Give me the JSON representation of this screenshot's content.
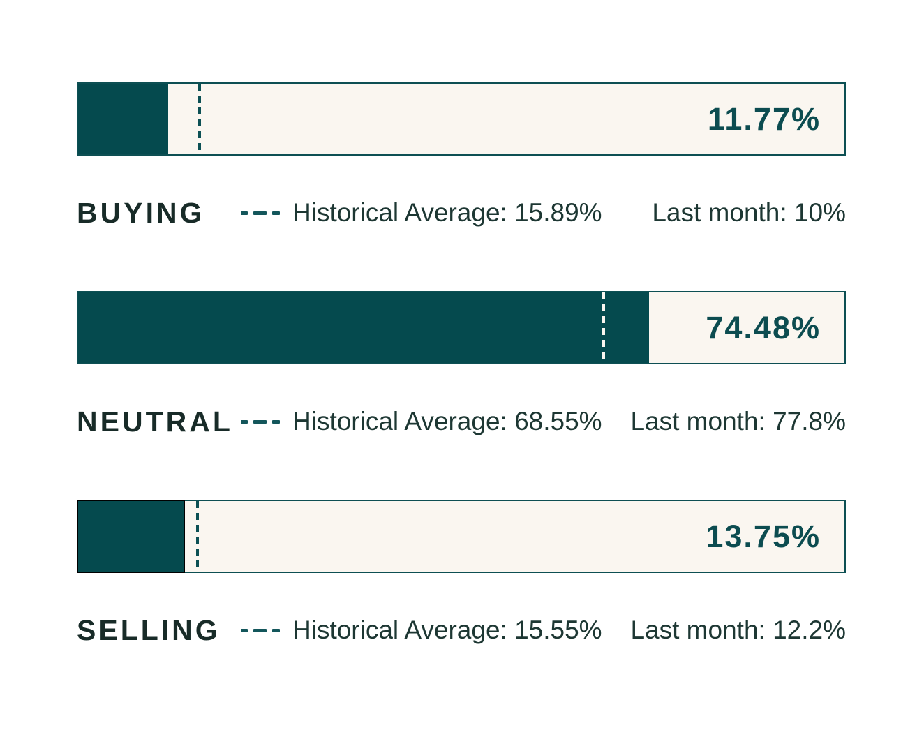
{
  "colors": {
    "page_background": "#FFFFFF",
    "bar_fill": "#054A4E",
    "bar_track_background": "#FAF6F0",
    "bar_border": "#0D4F53",
    "selling_fill_outline": "#000000",
    "value_text": "#0C4C50",
    "category_text": "#182B28",
    "info_text": "#1D3733",
    "legend_dash": "#13565B",
    "avg_line_on_track": "#0C5054",
    "avg_line_on_fill": "#FAF6F0"
  },
  "chart_data": {
    "type": "bar",
    "orientation": "horizontal",
    "value_unit": "%",
    "axis_range": [
      0,
      100
    ],
    "grid": false,
    "categories": [
      "BUYING",
      "NEUTRAL",
      "SELLING"
    ],
    "series": [
      {
        "category": "BUYING",
        "value": 11.77,
        "value_label": "11.77%",
        "historical_average": 15.89,
        "historical_average_text": "Historical Average: 15.89%",
        "last_month": 10,
        "last_month_text": "Last month: 10%",
        "fill_outlined": false
      },
      {
        "category": "NEUTRAL",
        "value": 74.48,
        "value_label": "74.48%",
        "historical_average": 68.55,
        "historical_average_text": "Historical Average: 68.55%",
        "last_month": 77.8,
        "last_month_text": "Last month: 77.8%",
        "fill_outlined": false
      },
      {
        "category": "SELLING",
        "value": 13.75,
        "value_label": "13.75%",
        "historical_average": 15.55,
        "historical_average_text": "Historical Average: 15.55%",
        "last_month": 12.2,
        "last_month_text": "Last month: 12.2%",
        "fill_outlined": true
      }
    ]
  }
}
